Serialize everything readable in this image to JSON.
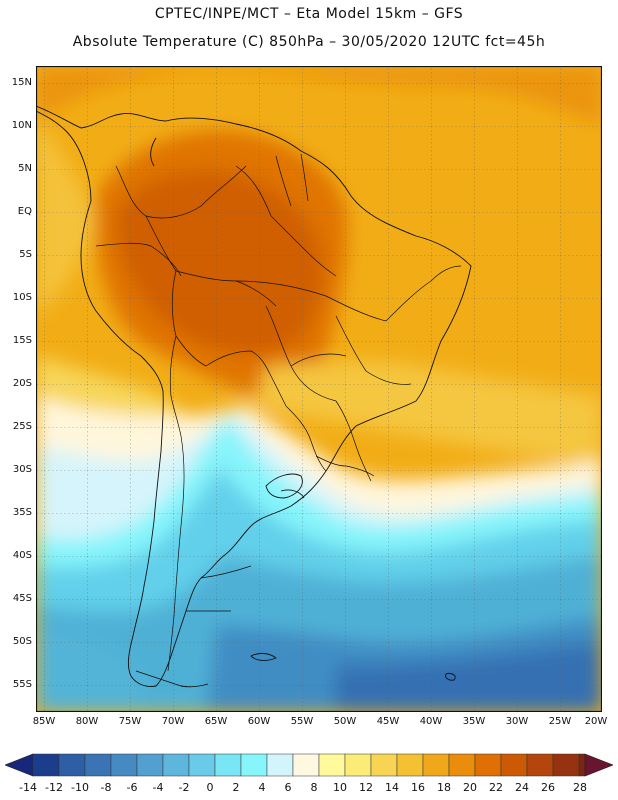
{
  "header": {
    "line1": "CPTEC/INPE/MCT –  Eta Model 15km – GFS",
    "line2": "Absolute Temperature (C) 850hPa – 30/05/2020 12UTC fct=45h"
  },
  "axes": {
    "lat_labels": [
      "15N",
      "10N",
      "5N",
      "EQ",
      "5S",
      "10S",
      "15S",
      "20S",
      "25S",
      "30S",
      "35S",
      "40S",
      "45S",
      "50S",
      "55S"
    ],
    "lon_labels": [
      "85W",
      "80W",
      "75W",
      "70W",
      "65W",
      "60W",
      "55W",
      "50W",
      "45W",
      "40W",
      "35W",
      "30W",
      "25W",
      "20W"
    ]
  },
  "colorbar": {
    "ticks": [
      "-14",
      "-12",
      "-10",
      "-8",
      "-6",
      "-4",
      "-2",
      "0",
      "2",
      "4",
      "6",
      "8",
      "10",
      "12",
      "14",
      "16",
      "18",
      "20",
      "22",
      "24",
      "26",
      "28"
    ],
    "colors": [
      "#1a3e8c",
      "#2e5ea5",
      "#3a74b5",
      "#468ac2",
      "#52a0cf",
      "#5fb6dc",
      "#6acbe8",
      "#78e6f4",
      "#86f6fb",
      "#d2f4fb",
      "#fff8e0",
      "#fffb9c",
      "#fbec78",
      "#f7d452",
      "#f4c133",
      "#f0a81a",
      "#ea8d0d",
      "#e07004",
      "#cc5a05",
      "#b4450d",
      "#973210",
      "#7d2412"
    ],
    "triangle_left_color": "#17287a",
    "triangle_right_color": "#6a1530"
  }
}
